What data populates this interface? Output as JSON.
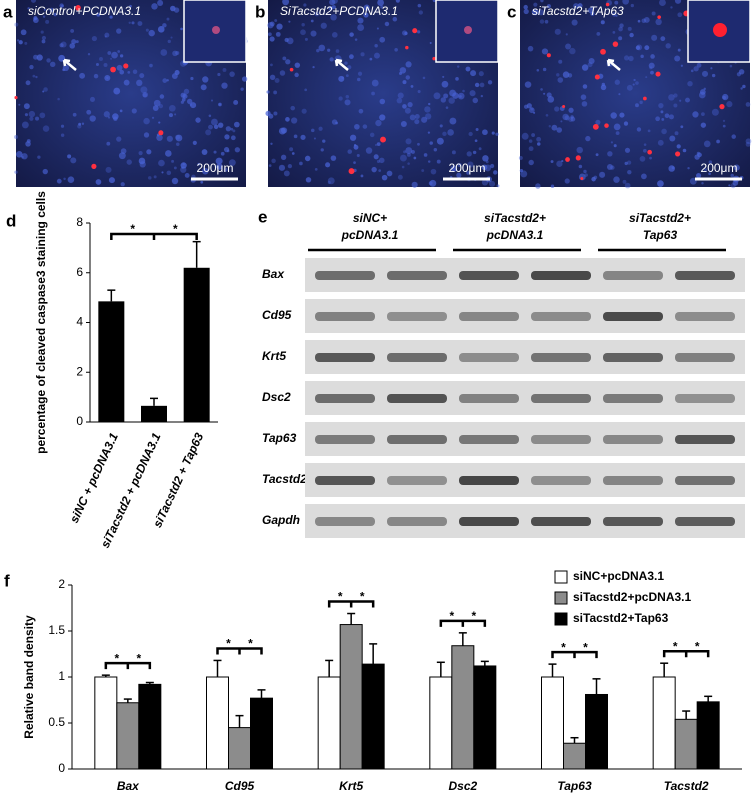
{
  "panels": [
    {
      "letter": "a",
      "caption": "siControl+PCDNA3.1",
      "scale": "200μm"
    },
    {
      "letter": "b",
      "caption": "SiTacstd2+PCDNA3.1",
      "scale": "200μm"
    },
    {
      "letter": "c",
      "caption": "siTacstd2+TAp63",
      "scale": "200μm"
    }
  ],
  "gel": {
    "letter": "e",
    "groups": [
      {
        "line1": "siNC+",
        "line2": "pcDNA3.1"
      },
      {
        "line1": "siTacstd2+",
        "line2": "pcDNA3.1"
      },
      {
        "line1": "siTacstd2+",
        "line2": "Tap63"
      }
    ],
    "rows": [
      "Bax",
      "Cd95",
      "Krt5",
      "Dsc2",
      "Tap63",
      "Tacstd2",
      "Gapdh"
    ]
  },
  "chart_data": [
    {
      "letter": "d",
      "type": "bar",
      "ylabel": "percentage  of cleaved caspase3 staining cells",
      "categories": [
        "siNC + pcDNA3.1",
        "siTacstd2 + pcDNA3.1",
        "siTacstd2 + Tap63"
      ],
      "values": [
        4.85,
        0.65,
        6.2
      ],
      "errors": [
        0.45,
        0.3,
        1.05
      ],
      "color": "#000000",
      "ylim": [
        0,
        8
      ],
      "yticks": [
        0,
        2,
        4,
        6,
        8
      ],
      "significance": [
        "*",
        "*"
      ]
    },
    {
      "letter": "f",
      "type": "grouped-bar",
      "ylabel": "Relative band  density",
      "categories": [
        "Bax",
        "Cd95",
        "Krt5",
        "Dsc2",
        "Tap63",
        "Tacstd2"
      ],
      "series": [
        {
          "name": "siNC+pcDNA3.1",
          "color": "#ffffff",
          "values": [
            1,
            1,
            1,
            1,
            1,
            1
          ],
          "errors": [
            0.02,
            0.18,
            0.18,
            0.16,
            0.14,
            0.15
          ]
        },
        {
          "name": "siTacstd2+pcDNA3.1",
          "color": "#8c8c8c",
          "values": [
            0.72,
            0.45,
            1.57,
            1.34,
            0.28,
            0.54
          ],
          "errors": [
            0.04,
            0.13,
            0.12,
            0.14,
            0.06,
            0.09
          ]
        },
        {
          "name": "siTacstd2+Tap63",
          "color": "#000000",
          "values": [
            0.92,
            0.77,
            1.14,
            1.12,
            0.81,
            0.73
          ],
          "errors": [
            0.02,
            0.09,
            0.22,
            0.05,
            0.17,
            0.06
          ]
        }
      ],
      "ylim": [
        0,
        2
      ],
      "yticks": [
        0,
        0.5,
        1,
        1.5,
        2
      ],
      "significance": [
        [
          "*",
          "*"
        ],
        [
          "*",
          "*"
        ],
        [
          "*",
          "*"
        ],
        [
          "*",
          "*"
        ],
        [
          "*",
          "*"
        ],
        [
          "*",
          "*"
        ]
      ]
    }
  ]
}
